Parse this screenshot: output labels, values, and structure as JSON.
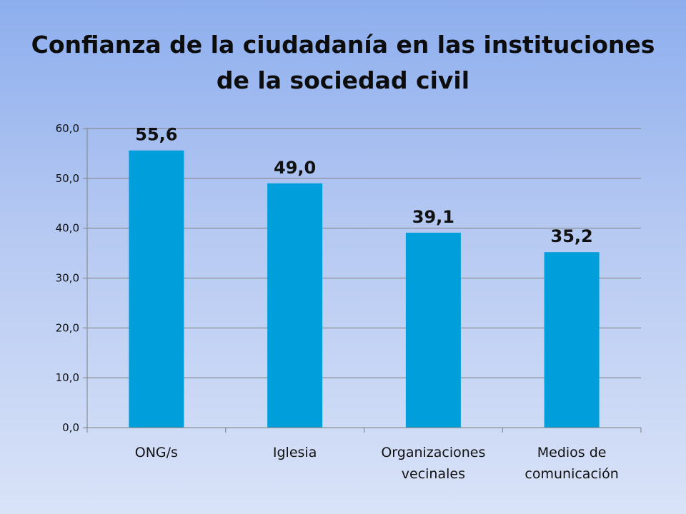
{
  "chart_data": {
    "type": "bar",
    "title_lines": [
      "Confianza de la ciudadanía en las instituciones",
      "de la sociedad civil"
    ],
    "categories": [
      [
        "ONG/s"
      ],
      [
        "Iglesia"
      ],
      [
        "Organizaciones",
        "vecinales"
      ],
      [
        "Medios de",
        "comunicación"
      ]
    ],
    "values": [
      55.6,
      49.0,
      39.1,
      35.2
    ],
    "data_labels": [
      "55,6",
      "49,0",
      "39,1",
      "35,2"
    ],
    "ylim": [
      0,
      60
    ],
    "yticks": [
      0,
      10,
      20,
      30,
      40,
      50,
      60
    ],
    "ytick_labels": [
      "0,0",
      "10,0",
      "20,0",
      "30,0",
      "40,0",
      "50,0",
      "60,0"
    ],
    "grid": true,
    "legend": "none",
    "bar_color": "#009edb",
    "grid_color": "#7f7f7f"
  }
}
